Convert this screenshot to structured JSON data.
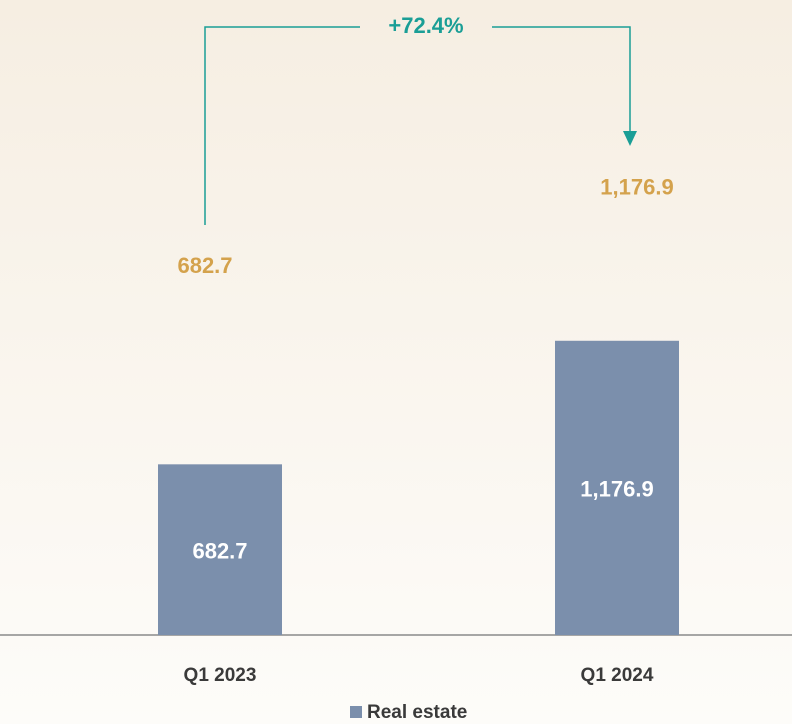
{
  "chart_data": {
    "type": "bar",
    "categories": [
      "Q1 2023",
      "Q1 2024"
    ],
    "series": [
      {
        "name": "Real estate",
        "color": "#7b8fac",
        "values": [
          682.7,
          1176.9
        ],
        "value_labels": [
          "682.7",
          "1,176.9"
        ]
      }
    ],
    "annotations": [
      "+72.4%"
    ],
    "ylim": [
      0,
      2400
    ],
    "legend": "bottom"
  }
}
